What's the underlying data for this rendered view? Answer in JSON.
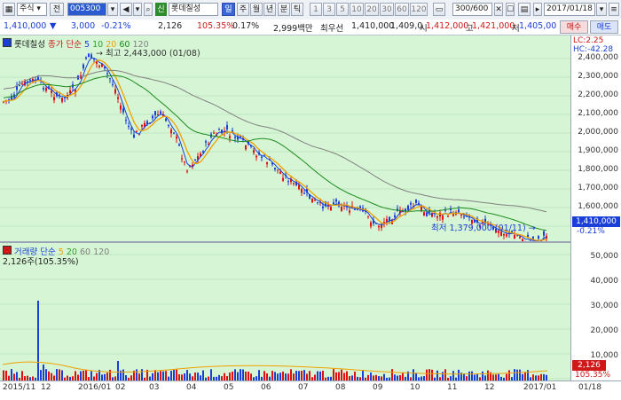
{
  "toolbar": {
    "view_icon": "grid-icon",
    "market_label": "주식",
    "all_label": "전",
    "code_value": "005300",
    "sound_icon": "speaker-icon",
    "credit_badge": "신",
    "stock_name": "롯데칠성",
    "day_label": "일",
    "period_buttons": [
      "주",
      "월",
      "년",
      "분",
      "틱"
    ],
    "interval_buttons": [
      "1",
      "3",
      "5",
      "10",
      "20",
      "30",
      "60",
      "120"
    ],
    "count_value": "300",
    "count_max": "/600",
    "date_value": "2017/01/18"
  },
  "quote": {
    "price": "1,410,000",
    "arrow": "▼",
    "change": "3,000",
    "change_pct": "-0.21%",
    "volume": "2,126",
    "volume_pct": "105.35%",
    "turnover_pct": "0.17%",
    "value": "2,999백만",
    "ask_label": "최우선",
    "ask1": "1,410,000",
    "bid1": "1,409,0",
    "open_label": "시",
    "open": "1,412,000",
    "high_label": "고",
    "high": "1,421,000",
    "low_label": "저",
    "low": "1,405,00",
    "buy_button": "매수",
    "sell_button": "매도"
  },
  "price_chart": {
    "title": "롯데칠성",
    "legend_main": "종가 단순",
    "ma_periods": [
      "5",
      "10",
      "20",
      "60",
      "120"
    ],
    "ma_colors": [
      "#1a3fd8",
      "#2e9c2e",
      "#f0a000",
      "#1c8c1c",
      "#808080"
    ],
    "high_note": "최고 2,443,000 (01/08)",
    "low_note": "최저 1,379,000 (01/11)",
    "lc_label": "LC:2.25",
    "hc_label": "HC:-42.28",
    "last_price_tag": "1,410,000",
    "last_change_tag": "-0.21%",
    "y_ticks": [
      "2,400,000",
      "2,300,000",
      "2,200,000",
      "2,100,000",
      "2,000,000",
      "1,900,000",
      "1,800,000",
      "1,700,000",
      "1,600,000",
      "1,500,000"
    ]
  },
  "volume_chart": {
    "legend_main": "거래량 단순",
    "ma_periods": [
      "5",
      "20",
      "60",
      "120"
    ],
    "note": "2,126주(105.35%)",
    "last_vol_tag": "2,126",
    "last_vol_pct": "105.35%",
    "y_ticks": [
      "50,000",
      "40,000",
      "30,000",
      "20,000",
      "10,000"
    ]
  },
  "x_axis": {
    "labels": [
      "2015/11",
      "12",
      "2016/01",
      "02",
      "03",
      "04",
      "05",
      "06",
      "07",
      "08",
      "09",
      "10",
      "11",
      "12",
      "2017/01",
      "01/18"
    ]
  }
}
